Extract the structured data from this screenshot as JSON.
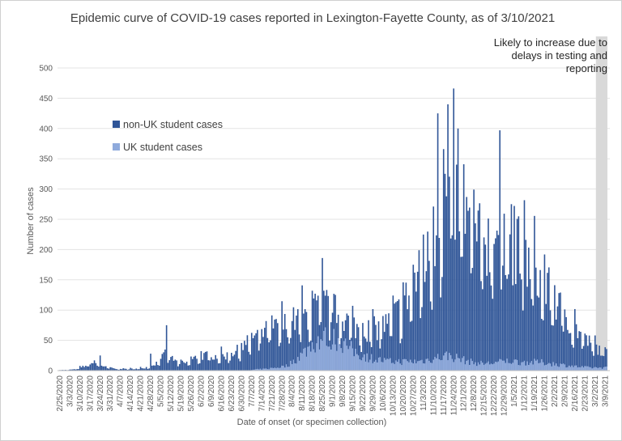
{
  "chart_data": {
    "type": "bar",
    "stacked": true,
    "title": "Epidemic curve of COVID-19 cases reported in Lexington-Fayette County, as of 3/10/2021",
    "xlabel": "Date of onset (or specimen collection)",
    "ylabel": "Number of cases",
    "ylim": [
      0,
      500
    ],
    "yticks": [
      0,
      50,
      100,
      150,
      200,
      250,
      300,
      350,
      400,
      450,
      500
    ],
    "start_date": "2/25/2020",
    "end_date": "3/10/2021",
    "xtick_labels": [
      "2/25/2020",
      "3/3/2020",
      "3/10/2020",
      "3/17/2020",
      "3/24/2020",
      "3/31/2020",
      "4/7/2020",
      "4/14/2020",
      "4/21/2020",
      "4/28/2020",
      "5/5/2020",
      "5/12/2020",
      "5/19/2020",
      "5/26/2020",
      "6/2/2020",
      "6/9/2020",
      "6/16/2020",
      "6/23/2020",
      "6/30/2020",
      "7/7/2020",
      "7/14/2020",
      "7/21/2020",
      "7/28/2020",
      "8/4/2020",
      "8/11/2020",
      "8/18/2020",
      "8/25/2020",
      "9/1/2020",
      "9/8/2020",
      "9/15/2020",
      "9/22/2020",
      "9/29/2020",
      "10/6/2020",
      "10/13/2020",
      "10/20/2020",
      "10/27/2020",
      "11/3/2020",
      "11/10/2020",
      "11/17/2020",
      "11/24/2020",
      "12/1/2020",
      "12/8/2020",
      "12/15/2020",
      "12/22/2020",
      "12/29/2020",
      "1/5/2021",
      "1/12/2021",
      "1/19/2021",
      "1/26/2021",
      "2/2/2021",
      "2/9/2021",
      "2/16/2021",
      "2/23/2021",
      "3/2/2021",
      "3/9/2021"
    ],
    "series": [
      {
        "name": "non-UK student cases",
        "color": "#2f5597"
      },
      {
        "name": "UK student cases",
        "color": "#8faadc"
      }
    ],
    "weekly_avg_total": [
      1,
      2,
      8,
      14,
      6,
      3,
      3,
      3,
      5,
      12,
      28,
      15,
      12,
      22,
      25,
      24,
      25,
      32,
      45,
      55,
      65,
      70,
      78,
      85,
      92,
      105,
      110,
      95,
      82,
      70,
      68,
      70,
      78,
      98,
      125,
      155,
      190,
      250,
      300,
      275,
      245,
      215,
      215,
      235,
      205,
      200,
      175,
      150,
      130,
      105,
      82,
      62,
      45,
      35,
      25
    ],
    "weekly_avg_uk": [
      0,
      0,
      0,
      0,
      0,
      0,
      0,
      0,
      0,
      0,
      0,
      0,
      0,
      0,
      0,
      0,
      0,
      0,
      0,
      2,
      3,
      5,
      8,
      20,
      35,
      50,
      55,
      52,
      40,
      28,
      22,
      18,
      15,
      15,
      15,
      15,
      18,
      22,
      25,
      20,
      15,
      12,
      12,
      14,
      16,
      14,
      14,
      14,
      12,
      10,
      8,
      6,
      5,
      5,
      5
    ],
    "peaks": [
      {
        "date": "3/24/2020",
        "total": 25
      },
      {
        "date": "4/28/2020",
        "total": 28
      },
      {
        "date": "5/9/2020",
        "total": 75
      },
      {
        "date": "8/25/2020",
        "total": 186
      },
      {
        "date": "11/13/2020",
        "total": 425
      },
      {
        "date": "11/20/2020",
        "total": 440
      },
      {
        "date": "11/27/2020",
        "total": 400
      },
      {
        "date": "12/26/2020",
        "total": 397
      },
      {
        "date": "1/3/2021",
        "total": 275
      }
    ],
    "shaded_region": {
      "from": "3/3/2021",
      "to": "3/10/2021",
      "color": "#d9d9d9"
    },
    "annotation": [
      "Likely to increase due to",
      "delays in testing and",
      "reporting"
    ],
    "legend_placement": "left, inside plot"
  }
}
